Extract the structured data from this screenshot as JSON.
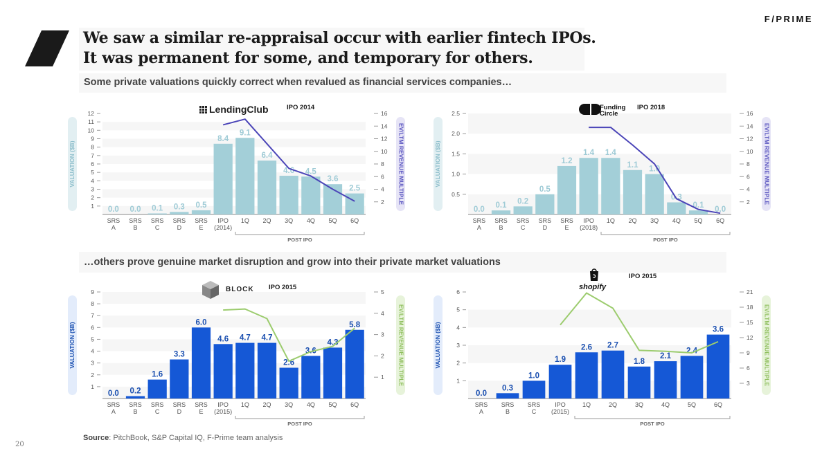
{
  "brand": "F/PRIME",
  "title": {
    "line1": "We saw a similar re-appraisal occur with earlier fintech IPOs.",
    "line2": "It was permanent for some, and temporary for others."
  },
  "subtitle_top": "Some private valuations quickly correct when revalued as financial services companies…",
  "subtitle_bottom": "…others prove genuine market disruption and grow into their private market valuations",
  "source": {
    "label": "Source",
    "text": ": PitchBook, S&P Capital IQ, F-Prime team analysis"
  },
  "page_number": "20",
  "colors": {
    "light_bar": "#a3cfd8",
    "light_label": "#9fcbd6",
    "dark_bar": "#1558d6",
    "dark_label": "#1a4fb0",
    "purple_line": "#4b45b8",
    "green_line": "#9ccc6e"
  },
  "chart_data": [
    {
      "type": "bar",
      "company": "LendingClub",
      "logo": "lendingclub-logo",
      "ipo_label": "IPO 2014",
      "categories": [
        "SRS A",
        "SRS B",
        "SRS C",
        "SRS D",
        "SRS E",
        "IPO (2014)",
        "1Q",
        "2Q",
        "3Q",
        "4Q",
        "5Q",
        "6Q"
      ],
      "values": [
        0.0,
        0.0,
        0.1,
        0.3,
        0.5,
        8.4,
        9.1,
        6.4,
        4.6,
        4.5,
        3.6,
        2.5
      ],
      "value_labels": [
        "0.0",
        "0.0",
        "0.1",
        "0.3",
        "0.5",
        "8.4",
        "9.1",
        "6.4",
        "4.6",
        "4.5",
        "3.6",
        "2.5"
      ],
      "ylabel": "VALUATION ($B)",
      "ylim": [
        0,
        12
      ],
      "yticks": [
        "1",
        "2",
        "3",
        "4",
        "5",
        "6",
        "7",
        "8",
        "9",
        "10",
        "11",
        "12"
      ],
      "y2label": "EV/LTM REVENUE MULTIPLE",
      "y2lim": [
        0,
        16
      ],
      "y2ticks": [
        "2",
        "4",
        "6",
        "8",
        "10",
        "12",
        "14",
        "16"
      ],
      "multiple_line": {
        "start_index": 5,
        "values": [
          14.2,
          15.1,
          11.2,
          7.3,
          6.1,
          4.0,
          2.1
        ]
      },
      "post_ipo_label": "POST IPO",
      "theme": "light"
    },
    {
      "type": "bar",
      "company": "Funding Circle",
      "logo": "funding-circle-logo",
      "ipo_label": "IPO 2018",
      "categories": [
        "SRS A",
        "SRS B",
        "SRS C",
        "SRS D",
        "SRS E",
        "IPO (2018)",
        "1Q",
        "2Q",
        "3Q",
        "4Q",
        "5Q",
        "6Q"
      ],
      "values": [
        0.0,
        0.1,
        0.2,
        0.5,
        1.2,
        1.4,
        1.4,
        1.1,
        1.0,
        0.3,
        0.1,
        0.0
      ],
      "value_labels": [
        "0.0",
        "0.1",
        "0.2",
        "0.5",
        "1.2",
        "1.4",
        "1.4",
        "1.1",
        "1.0",
        "0.3",
        "0.1",
        "0.0"
      ],
      "ylabel": "VALUATION ($B)",
      "ylim": [
        0,
        2.5
      ],
      "yticks": [
        "0.5",
        "1.0",
        "1.5",
        "2.0",
        "2.5"
      ],
      "y2label": "EV/LTM REVENUE MULTIPLE",
      "y2lim": [
        0,
        16
      ],
      "y2ticks": [
        "2",
        "4",
        "6",
        "8",
        "10",
        "12",
        "14",
        "16"
      ],
      "multiple_line": {
        "start_index": 5,
        "values": [
          13.8,
          13.8,
          11.0,
          8.0,
          2.5,
          0.8,
          0.2
        ]
      },
      "post_ipo_label": "POST IPO",
      "theme": "light"
    },
    {
      "type": "bar",
      "company": "BLOCK",
      "logo": "block-logo",
      "ipo_label": "IPO 2015",
      "categories": [
        "SRS A",
        "SRS B",
        "SRS C",
        "SRS D",
        "SRS E",
        "IPO (2015)",
        "1Q",
        "2Q",
        "3Q",
        "4Q",
        "5Q",
        "6Q"
      ],
      "values": [
        0.0,
        0.2,
        1.6,
        3.3,
        6.0,
        4.6,
        4.7,
        4.7,
        2.6,
        3.6,
        4.3,
        5.8
      ],
      "value_labels": [
        "0.0",
        "0.2",
        "1.6",
        "3.3",
        "6.0",
        "4.6",
        "4.7",
        "4.7",
        "2.6",
        "3.6",
        "4.3",
        "5.8"
      ],
      "ylabel": "VALUATION ($B)",
      "ylim": [
        0,
        9
      ],
      "yticks": [
        "1",
        "2",
        "3",
        "4",
        "5",
        "6",
        "7",
        "8",
        "9"
      ],
      "y2label": "EV/LTM REVENUE MULTIPLE",
      "y2lim": [
        0,
        5
      ],
      "y2ticks": [
        "1",
        "2",
        "3",
        "4",
        "5"
      ],
      "multiple_line": {
        "start_index": 5,
        "values": [
          4.15,
          4.2,
          3.75,
          1.75,
          2.2,
          2.45,
          3.3
        ]
      },
      "post_ipo_label": "POST IPO",
      "theme": "dark"
    },
    {
      "type": "bar",
      "company": "shopify",
      "logo": "shopify-logo",
      "ipo_label": "IPO 2015",
      "categories": [
        "SRS A",
        "SRS B",
        "SRS C",
        "IPO (2015)",
        "1Q",
        "2Q",
        "3Q",
        "4Q",
        "5Q",
        "6Q"
      ],
      "values": [
        0.0,
        0.3,
        1.0,
        1.9,
        2.6,
        2.7,
        1.8,
        2.1,
        2.4,
        3.6
      ],
      "value_labels": [
        "0.0",
        "0.3",
        "1.0",
        "1.9",
        "2.6",
        "2.7",
        "1.8",
        "2.1",
        "2.4",
        "3.6"
      ],
      "ylabel": "VALUATION ($B)",
      "ylim": [
        0,
        6
      ],
      "yticks": [
        "1",
        "2",
        "3",
        "4",
        "5",
        "6"
      ],
      "y2label": "EV/LTM REVENUE MULTIPLE",
      "y2lim": [
        0,
        21
      ],
      "y2ticks": [
        "3",
        "6",
        "9",
        "12",
        "15",
        "18",
        "21"
      ],
      "multiple_line": {
        "start_index": 3,
        "values": [
          14.5,
          20.8,
          17.8,
          9.5,
          9.3,
          9.0,
          11.2
        ]
      },
      "post_ipo_label": "POST IPO",
      "theme": "dark"
    }
  ]
}
